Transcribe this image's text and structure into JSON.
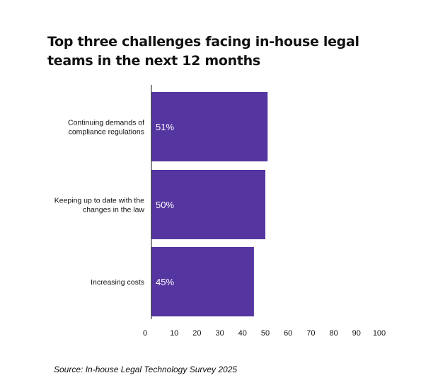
{
  "chart_data": {
    "type": "bar",
    "orientation": "horizontal",
    "title": "Top three challenges facing in-house legal teams in the next 12 months",
    "categories": [
      "Continuing demands of compliance regulations",
      "Keeping up to date with the changes in the law",
      "Increasing costs"
    ],
    "category_lines": [
      [
        "Continuing demands of",
        "compliance regulations"
      ],
      [
        "Keeping up to date with the",
        "changes in the law"
      ],
      [
        "Increasing costs"
      ]
    ],
    "values": [
      51,
      50,
      45
    ],
    "data_labels": [
      "51%",
      "50%",
      "45%"
    ],
    "xlim": [
      0,
      100
    ],
    "xticks": [
      0,
      10,
      20,
      30,
      40,
      50,
      60,
      70,
      80,
      90,
      100
    ],
    "grid": false,
    "legend": "none",
    "bar_color": "#5535a0",
    "label_color": "#ffffff"
  },
  "source": "Source: In-house Legal Technology Survey 2025"
}
